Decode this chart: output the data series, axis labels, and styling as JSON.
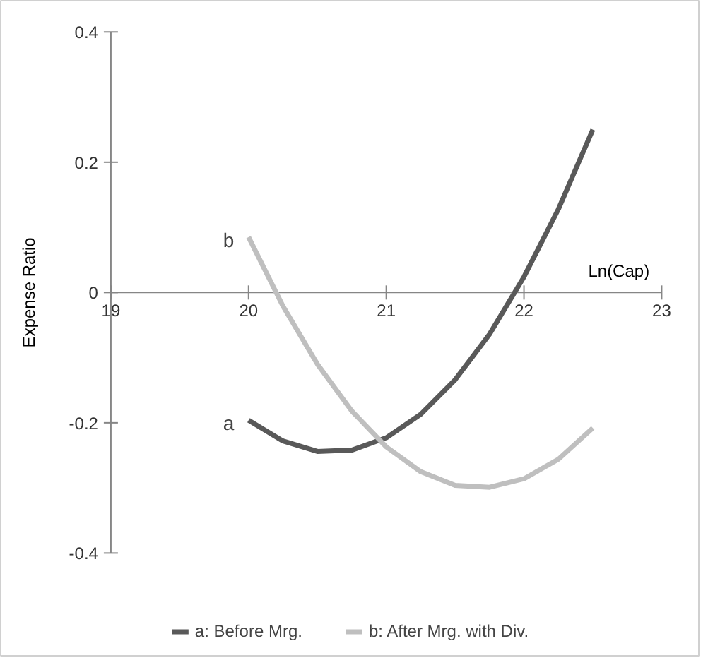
{
  "chart_data": {
    "type": "line",
    "xlabel": "Ln(Cap)",
    "ylabel": "Expense Ratio",
    "xlim": [
      19,
      23
    ],
    "ylim": [
      -0.4,
      0.4
    ],
    "xticks": [
      19,
      20,
      21,
      22,
      23
    ],
    "yticks": [
      0.4,
      0.2,
      0,
      -0.2,
      -0.4
    ],
    "grid": false,
    "legend": "bottom",
    "marker": "none",
    "line_style": "solid",
    "series": [
      {
        "name": "a: Before Mrg.",
        "color": "#595959",
        "x": [
          20,
          20.25,
          20.5,
          20.75,
          21,
          21.25,
          21.5,
          21.75,
          22,
          22.25,
          22.5
        ],
        "values": [
          -0.196,
          -0.228,
          -0.244,
          -0.242,
          -0.223,
          -0.187,
          -0.134,
          -0.064,
          0.024,
          0.128,
          0.25
        ]
      },
      {
        "name": "b: After Mrg. with Div.",
        "color": "#bfbfbf",
        "x": [
          20,
          20.25,
          20.5,
          20.75,
          21,
          21.25,
          21.5,
          21.75,
          22,
          22.25,
          22.5
        ],
        "values": [
          0.085,
          -0.021,
          -0.11,
          -0.182,
          -0.237,
          -0.275,
          -0.296,
          -0.299,
          -0.286,
          -0.256,
          -0.208
        ]
      }
    ],
    "annotations": [
      {
        "text": "a",
        "x": 20,
        "y": -0.196
      },
      {
        "text": "b",
        "x": 20,
        "y": 0.085
      }
    ]
  }
}
